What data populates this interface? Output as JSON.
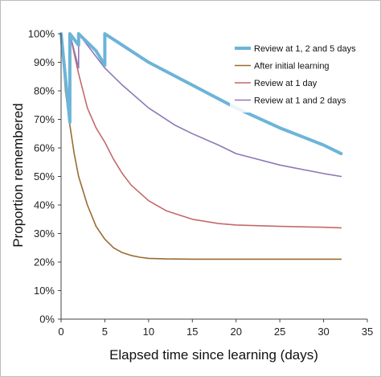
{
  "chart_data": {
    "type": "line",
    "title": "",
    "xlabel": "Elapsed time since learning (days)",
    "ylabel": "Proportion remembered",
    "xlim": [
      0,
      35
    ],
    "ylim": [
      0,
      100
    ],
    "x_ticks": [
      0,
      5,
      10,
      15,
      20,
      25,
      30,
      35
    ],
    "y_ticks": [
      0,
      10,
      20,
      30,
      40,
      50,
      60,
      70,
      80,
      90,
      100
    ],
    "y_tick_suffix": "%",
    "grid": false,
    "legend_position": "top-right",
    "series": [
      {
        "name": "Review at 1, 2 and 5 days",
        "color": "#6cb4d8",
        "line_width": 4,
        "points": [
          [
            0,
            100
          ],
          [
            1,
            69
          ],
          [
            1,
            100
          ],
          [
            2,
            96
          ],
          [
            2,
            100
          ],
          [
            3,
            97
          ],
          [
            4,
            94
          ],
          [
            5,
            89
          ],
          [
            5,
            100
          ],
          [
            7,
            96
          ],
          [
            10,
            90
          ],
          [
            15,
            82
          ],
          [
            20,
            74
          ],
          [
            25,
            67
          ],
          [
            30,
            61
          ],
          [
            32,
            58
          ]
        ]
      },
      {
        "name": "After initial learning",
        "color": "#9a6b2f",
        "line_width": 1.6,
        "points": [
          [
            0,
            100
          ],
          [
            0.5,
            80
          ],
          [
            1,
            68
          ],
          [
            1.5,
            58
          ],
          [
            2,
            50
          ],
          [
            3,
            40
          ],
          [
            4,
            32.5
          ],
          [
            5,
            28
          ],
          [
            6,
            25
          ],
          [
            7,
            23.3
          ],
          [
            8,
            22.3
          ],
          [
            9,
            21.7
          ],
          [
            10,
            21.3
          ],
          [
            12,
            21.1
          ],
          [
            15,
            21
          ],
          [
            20,
            21
          ],
          [
            25,
            21
          ],
          [
            32,
            21
          ]
        ]
      },
      {
        "name": "Review at 1 day",
        "color": "#c4696a",
        "line_width": 1.6,
        "points": [
          [
            0,
            100
          ],
          [
            0.5,
            86
          ],
          [
            1,
            69
          ],
          [
            1,
            100
          ],
          [
            2,
            86
          ],
          [
            3,
            74
          ],
          [
            4,
            67
          ],
          [
            5,
            62
          ],
          [
            6,
            56
          ],
          [
            7,
            51
          ],
          [
            8,
            47
          ],
          [
            10,
            41.5
          ],
          [
            12,
            38
          ],
          [
            15,
            35
          ],
          [
            18,
            33.5
          ],
          [
            20,
            33
          ],
          [
            25,
            32.5
          ],
          [
            30,
            32.2
          ],
          [
            32,
            32
          ]
        ]
      },
      {
        "name": "Review at 1 and 2 days",
        "color": "#8e79b5",
        "line_width": 1.6,
        "points": [
          [
            0,
            100
          ],
          [
            1,
            71
          ],
          [
            1,
            100
          ],
          [
            2,
            88
          ],
          [
            2,
            100
          ],
          [
            3,
            96
          ],
          [
            4,
            92
          ],
          [
            5,
            88
          ],
          [
            7,
            82
          ],
          [
            10,
            74
          ],
          [
            13,
            68
          ],
          [
            15,
            65
          ],
          [
            18,
            61
          ],
          [
            20,
            58
          ],
          [
            25,
            54
          ],
          [
            30,
            51
          ],
          [
            32,
            50
          ]
        ]
      }
    ]
  }
}
